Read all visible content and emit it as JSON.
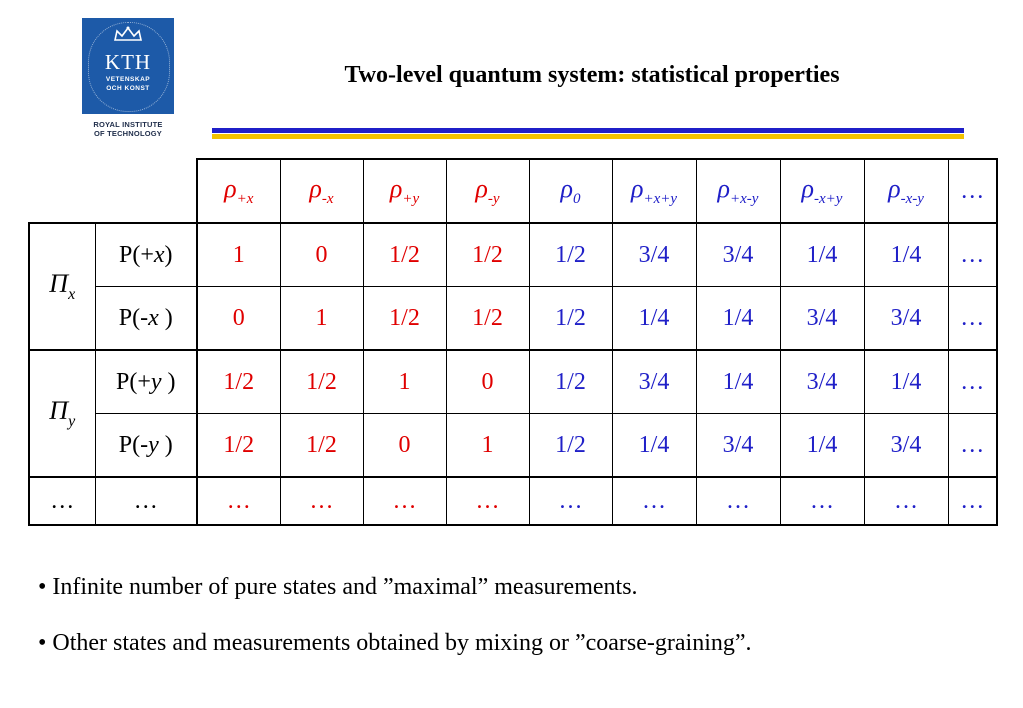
{
  "logo": {
    "text": "KTH",
    "line1": "VETENSKAP",
    "line2": "OCH KONST",
    "subtitle_line1": "ROYAL INSTITUTE",
    "subtitle_line2": "OF TECHNOLOGY"
  },
  "title": "Two-level quantum system: statistical properties",
  "colors": {
    "accent_blue": "#1f1fc8",
    "accent_gold": "#f2c200",
    "red": "#e00000",
    "blue": "#2020c8",
    "logo_blue": "#1d5aa8"
  },
  "table": {
    "header": [
      {
        "sym": "ρ",
        "sub": "+x",
        "color": "red"
      },
      {
        "sym": "ρ",
        "sub": "-x",
        "color": "red"
      },
      {
        "sym": "ρ",
        "sub": "+y",
        "color": "red"
      },
      {
        "sym": "ρ",
        "sub": "-y",
        "color": "red"
      },
      {
        "sym": "ρ",
        "sub": "0",
        "color": "blue"
      },
      {
        "sym": "ρ",
        "sub": "+x+y",
        "color": "blue"
      },
      {
        "sym": "ρ",
        "sub": "+x-y",
        "color": "blue"
      },
      {
        "sym": "ρ",
        "sub": "-x+y",
        "color": "blue"
      },
      {
        "sym": "ρ",
        "sub": "-x-y",
        "color": "blue"
      },
      {
        "sym": "…",
        "sub": "",
        "color": "blue"
      }
    ],
    "groups": [
      {
        "sym": "Π",
        "sub": "x",
        "rows": [
          {
            "label_pre": "P(+",
            "label_var": "x",
            "label_post": ")",
            "values": [
              "1",
              "0",
              "1/2",
              "1/2",
              "1/2",
              "3/4",
              "3/4",
              "1/4",
              "1/4",
              "…"
            ]
          },
          {
            "label_pre": "P(-",
            "label_var": "x",
            "label_post": " )",
            "values": [
              "0",
              "1",
              "1/2",
              "1/2",
              "1/2",
              "1/4",
              "1/4",
              "3/4",
              "3/4",
              "…"
            ]
          }
        ]
      },
      {
        "sym": "Π",
        "sub": "y",
        "rows": [
          {
            "label_pre": "P(+",
            "label_var": "y",
            "label_post": " )",
            "values": [
              "1/2",
              "1/2",
              "1",
              "0",
              "1/2",
              "3/4",
              "1/4",
              "3/4",
              "1/4",
              "…"
            ]
          },
          {
            "label_pre": "P(-",
            "label_var": "y",
            "label_post": " )",
            "values": [
              "1/2",
              "1/2",
              "0",
              "1",
              "1/2",
              "1/4",
              "3/4",
              "1/4",
              "3/4",
              "…"
            ]
          }
        ]
      }
    ],
    "last_row": [
      "…",
      "…",
      "…",
      "…",
      "…",
      "…",
      "…",
      "…",
      "…",
      "…",
      "…",
      "…"
    ]
  },
  "bullets": [
    "• Infinite number of pure states  and ”maximal” measurements.",
    "• Other states and measurements obtained by mixing or ”coarse-graining”."
  ]
}
